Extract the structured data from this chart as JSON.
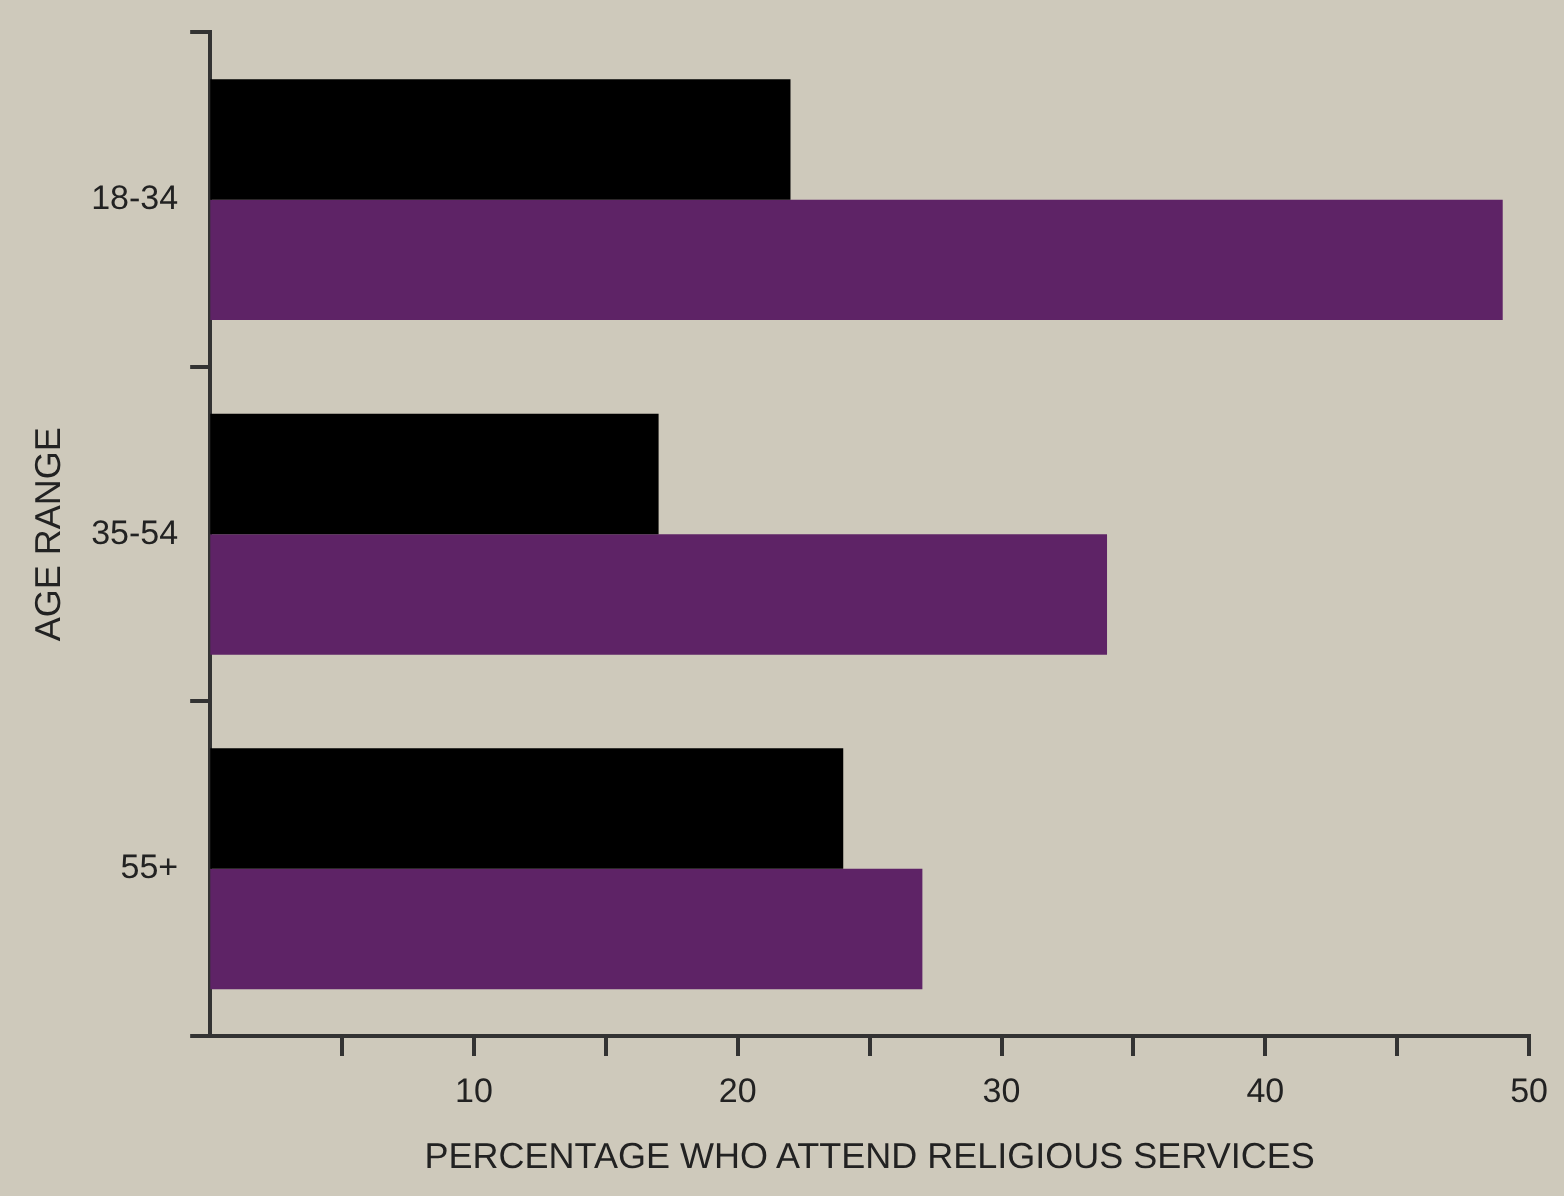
{
  "chart_data": {
    "type": "bar",
    "orientation": "horizontal",
    "xlabel": "PERCENTAGE WHO ATTEND RELIGIOUS SERVICES",
    "ylabel": "AGE RANGE",
    "categories": [
      "18-34",
      "35-54",
      "55+"
    ],
    "series": [
      {
        "color": "#000000",
        "values": [
          22,
          17,
          24
        ]
      },
      {
        "color": "#5e2366",
        "values": [
          49,
          34,
          27
        ]
      }
    ],
    "xlim": [
      0,
      50
    ],
    "xticks": [
      {
        "value": 5,
        "label": null
      },
      10,
      {
        "value": 15,
        "label": null
      },
      20,
      {
        "value": 25,
        "label": null
      },
      30,
      {
        "value": 35,
        "label": null
      },
      40,
      {
        "value": 45,
        "label": null
      },
      50
    ],
    "grid": false,
    "legend": false
  }
}
